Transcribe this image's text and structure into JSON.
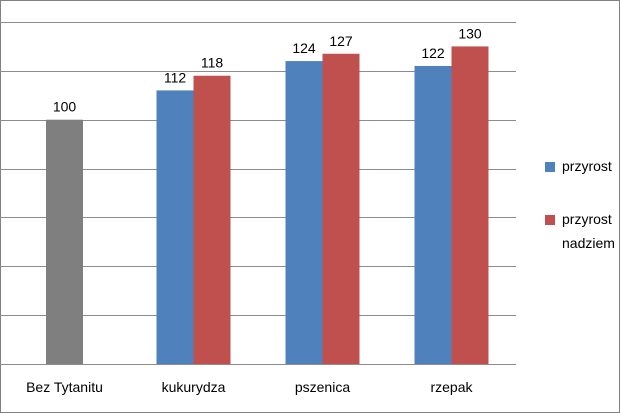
{
  "chart_data": {
    "type": "bar",
    "title": "",
    "xlabel": "",
    "ylabel": "",
    "ylim": [
      0,
      140
    ],
    "y_gridline_step": 20,
    "grid": true,
    "legend_position": "right",
    "categories": [
      "Bez Tytanitu",
      "kukurydza",
      "pszenica",
      "rzepak"
    ],
    "series": [
      {
        "name": "przyrost",
        "color": "#4f81bd",
        "values": [
          null,
          112,
          124,
          122
        ]
      },
      {
        "name": "przyrost nadziem",
        "color": "#c0504d",
        "values": [
          null,
          118,
          127,
          130
        ]
      },
      {
        "name": "",
        "color": "#7f7f7f",
        "values": [
          100,
          null,
          null,
          null
        ]
      }
    ],
    "legend": [
      {
        "lines": [
          "przyrost"
        ],
        "color": "#4f81bd"
      },
      {
        "lines": [
          "przyrost",
          "nadziem"
        ],
        "color": "#c0504d"
      }
    ]
  }
}
